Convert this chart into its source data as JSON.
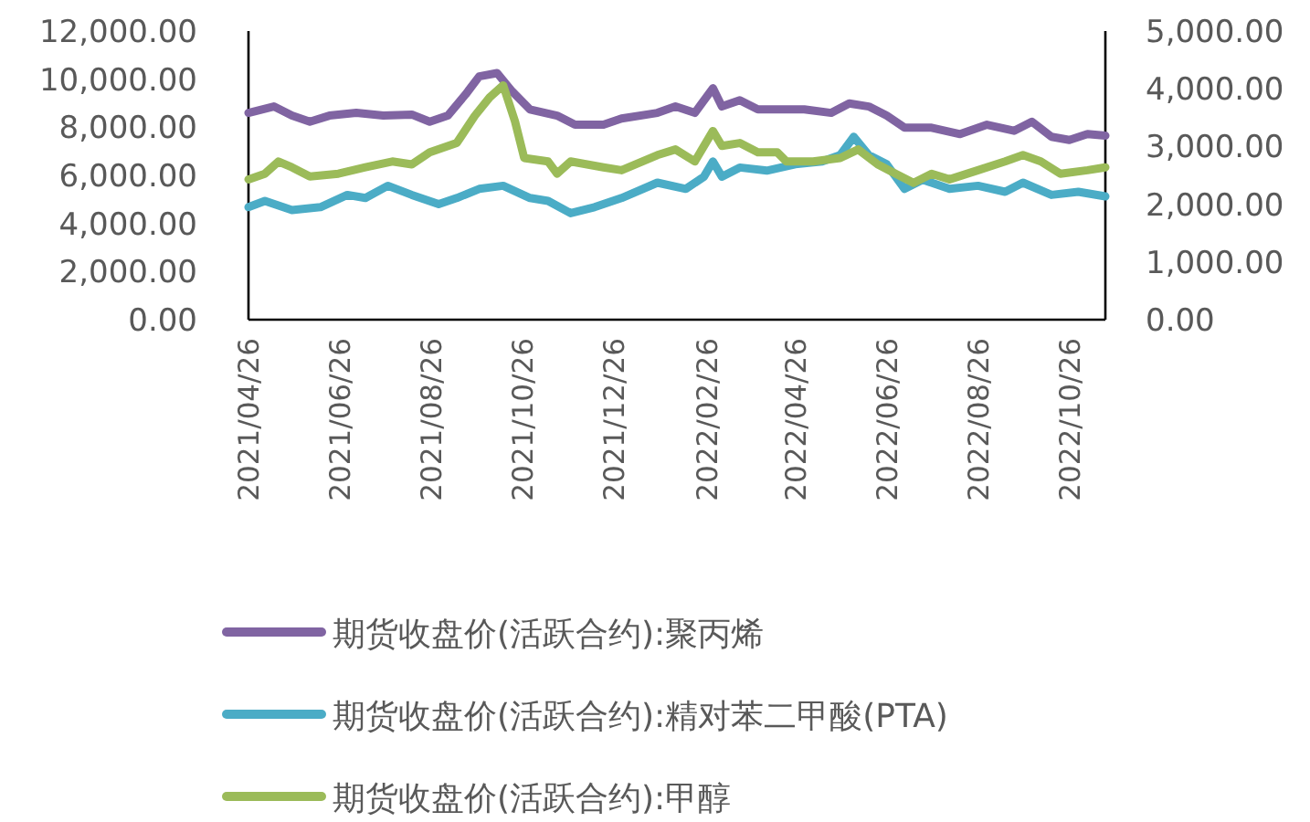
{
  "chart_data": {
    "type": "line",
    "legend": "bottom",
    "xlim": [
      "2021-04-26",
      "2022-11-19"
    ],
    "xticks": [
      {
        "value": "2021-04-26",
        "label": "2021/04/26"
      },
      {
        "value": "2021-06-26",
        "label": "2021/06/26"
      },
      {
        "value": "2021-08-26",
        "label": "2021/08/26"
      },
      {
        "value": "2021-10-26",
        "label": "2021/10/26"
      },
      {
        "value": "2021-12-26",
        "label": "2021/12/26"
      },
      {
        "value": "2022-02-26",
        "label": "2022/02/26"
      },
      {
        "value": "2022-04-26",
        "label": "2022/04/26"
      },
      {
        "value": "2022-06-26",
        "label": "2022/06/26"
      },
      {
        "value": "2022-08-26",
        "label": "2022/08/26"
      },
      {
        "value": "2022-10-26",
        "label": "2022/10/26"
      }
    ],
    "ylim": [
      0,
      12000
    ],
    "yticks": [
      {
        "value": 0,
        "label": "0.00"
      },
      {
        "value": 2000,
        "label": "2,000.00"
      },
      {
        "value": 4000,
        "label": "4,000.00"
      },
      {
        "value": 6000,
        "label": "6,000.00"
      },
      {
        "value": 8000,
        "label": "8,000.00"
      },
      {
        "value": 10000,
        "label": "10,000.00"
      },
      {
        "value": 12000,
        "label": "12,000.00"
      }
    ],
    "y2lim": [
      0,
      5000
    ],
    "y2ticks": [
      {
        "value": 0,
        "label": "0.00"
      },
      {
        "value": 1000,
        "label": "1,000.00"
      },
      {
        "value": 2000,
        "label": "2,000.00"
      },
      {
        "value": 3000,
        "label": "3,000.00"
      },
      {
        "value": 4000,
        "label": "4,000.00"
      },
      {
        "value": 5000,
        "label": "5,000.00"
      }
    ],
    "series": [
      {
        "name": "期货收盘价(活跃合约):聚丙烯",
        "color": "#8064a2",
        "x": [
          "2021-04-26",
          "2021-05-13",
          "2021-05-25",
          "2021-06-06",
          "2021-06-19",
          "2021-07-07",
          "2021-07-25",
          "2021-08-13",
          "2021-08-25",
          "2021-09-06",
          "2021-09-18",
          "2021-09-27",
          "2021-10-09",
          "2021-10-19",
          "2021-10-31",
          "2021-11-18",
          "2021-11-30",
          "2021-12-19",
          "2021-12-31",
          "2022-01-24",
          "2022-02-05",
          "2022-02-18",
          "2022-03-02",
          "2022-03-08",
          "2022-03-20",
          "2022-04-01",
          "2022-04-20",
          "2022-05-02",
          "2022-05-20",
          "2022-06-01",
          "2022-06-14",
          "2022-06-26",
          "2022-07-08",
          "2022-07-26",
          "2022-08-14",
          "2022-09-01",
          "2022-09-19",
          "2022-10-01",
          "2022-10-14",
          "2022-10-26",
          "2022-11-07",
          "2022-11-19"
        ],
        "values": [
          8600,
          8860,
          8480,
          8230,
          8480,
          8600,
          8480,
          8530,
          8230,
          8480,
          9370,
          10120,
          10250,
          9490,
          8740,
          8480,
          8100,
          8100,
          8360,
          8600,
          8860,
          8600,
          9620,
          8860,
          9120,
          8740,
          8740,
          8740,
          8600,
          8990,
          8860,
          8480,
          7980,
          7980,
          7720,
          8100,
          7850,
          8230,
          7600,
          7470,
          7720,
          7650
        ]
      },
      {
        "name": "期货收盘价(活跃合约):精对苯二甲酸(PTA)",
        "color": "#4bacc6",
        "x": [
          "2021-04-26",
          "2021-05-07",
          "2021-05-25",
          "2021-06-13",
          "2021-07-01",
          "2021-07-13",
          "2021-07-28",
          "2021-08-13",
          "2021-08-31",
          "2021-09-12",
          "2021-09-27",
          "2021-10-13",
          "2021-10-31",
          "2021-11-12",
          "2021-11-27",
          "2021-12-13",
          "2021-12-31",
          "2022-01-24",
          "2022-02-12",
          "2022-02-24",
          "2022-03-02",
          "2022-03-08",
          "2022-03-20",
          "2022-04-07",
          "2022-04-26",
          "2022-05-14",
          "2022-05-26",
          "2022-06-04",
          "2022-06-14",
          "2022-06-26",
          "2022-07-08",
          "2022-07-20",
          "2022-08-07",
          "2022-08-26",
          "2022-09-13",
          "2022-09-25",
          "2022-10-14",
          "2022-11-01",
          "2022-11-19"
        ],
        "values": [
          4680,
          4940,
          4560,
          4680,
          5190,
          5060,
          5570,
          5190,
          4810,
          5060,
          5440,
          5570,
          5060,
          4940,
          4430,
          4680,
          5060,
          5700,
          5440,
          5950,
          6580,
          5950,
          6330,
          6200,
          6460,
          6580,
          6840,
          7600,
          6840,
          6460,
          5440,
          5820,
          5440,
          5570,
          5320,
          5700,
          5190,
          5320,
          5130
        ]
      },
      {
        "name": "期货收盘价(活跃合约):甲醇",
        "color": "#9bbb59",
        "axis": "y2",
        "x": [
          "2021-04-26",
          "2021-05-07",
          "2021-05-16",
          "2021-05-25",
          "2021-06-06",
          "2021-06-25",
          "2021-07-13",
          "2021-07-31",
          "2021-08-13",
          "2021-08-25",
          "2021-09-12",
          "2021-09-24",
          "2021-10-04",
          "2021-10-13",
          "2021-10-21",
          "2021-10-27",
          "2021-11-12",
          "2021-11-18",
          "2021-11-27",
          "2021-12-19",
          "2021-12-31",
          "2022-01-24",
          "2022-02-05",
          "2022-02-18",
          "2022-03-02",
          "2022-03-08",
          "2022-03-20",
          "2022-04-01",
          "2022-04-14",
          "2022-04-20",
          "2022-05-08",
          "2022-05-26",
          "2022-06-07",
          "2022-06-20",
          "2022-07-02",
          "2022-07-14",
          "2022-07-26",
          "2022-08-07",
          "2022-08-26",
          "2022-09-13",
          "2022-09-25",
          "2022-10-07",
          "2022-10-20",
          "2022-11-07",
          "2022-11-19"
        ],
        "values": [
          2430,
          2530,
          2740,
          2640,
          2480,
          2530,
          2640,
          2740,
          2690,
          2900,
          3060,
          3530,
          3850,
          4060,
          3430,
          2800,
          2740,
          2530,
          2740,
          2640,
          2590,
          2850,
          2950,
          2740,
          3270,
          3010,
          3060,
          2900,
          2900,
          2740,
          2740,
          2800,
          2950,
          2690,
          2530,
          2370,
          2530,
          2430,
          2590,
          2740,
          2850,
          2740,
          2530,
          2590,
          2640
        ]
      }
    ]
  }
}
